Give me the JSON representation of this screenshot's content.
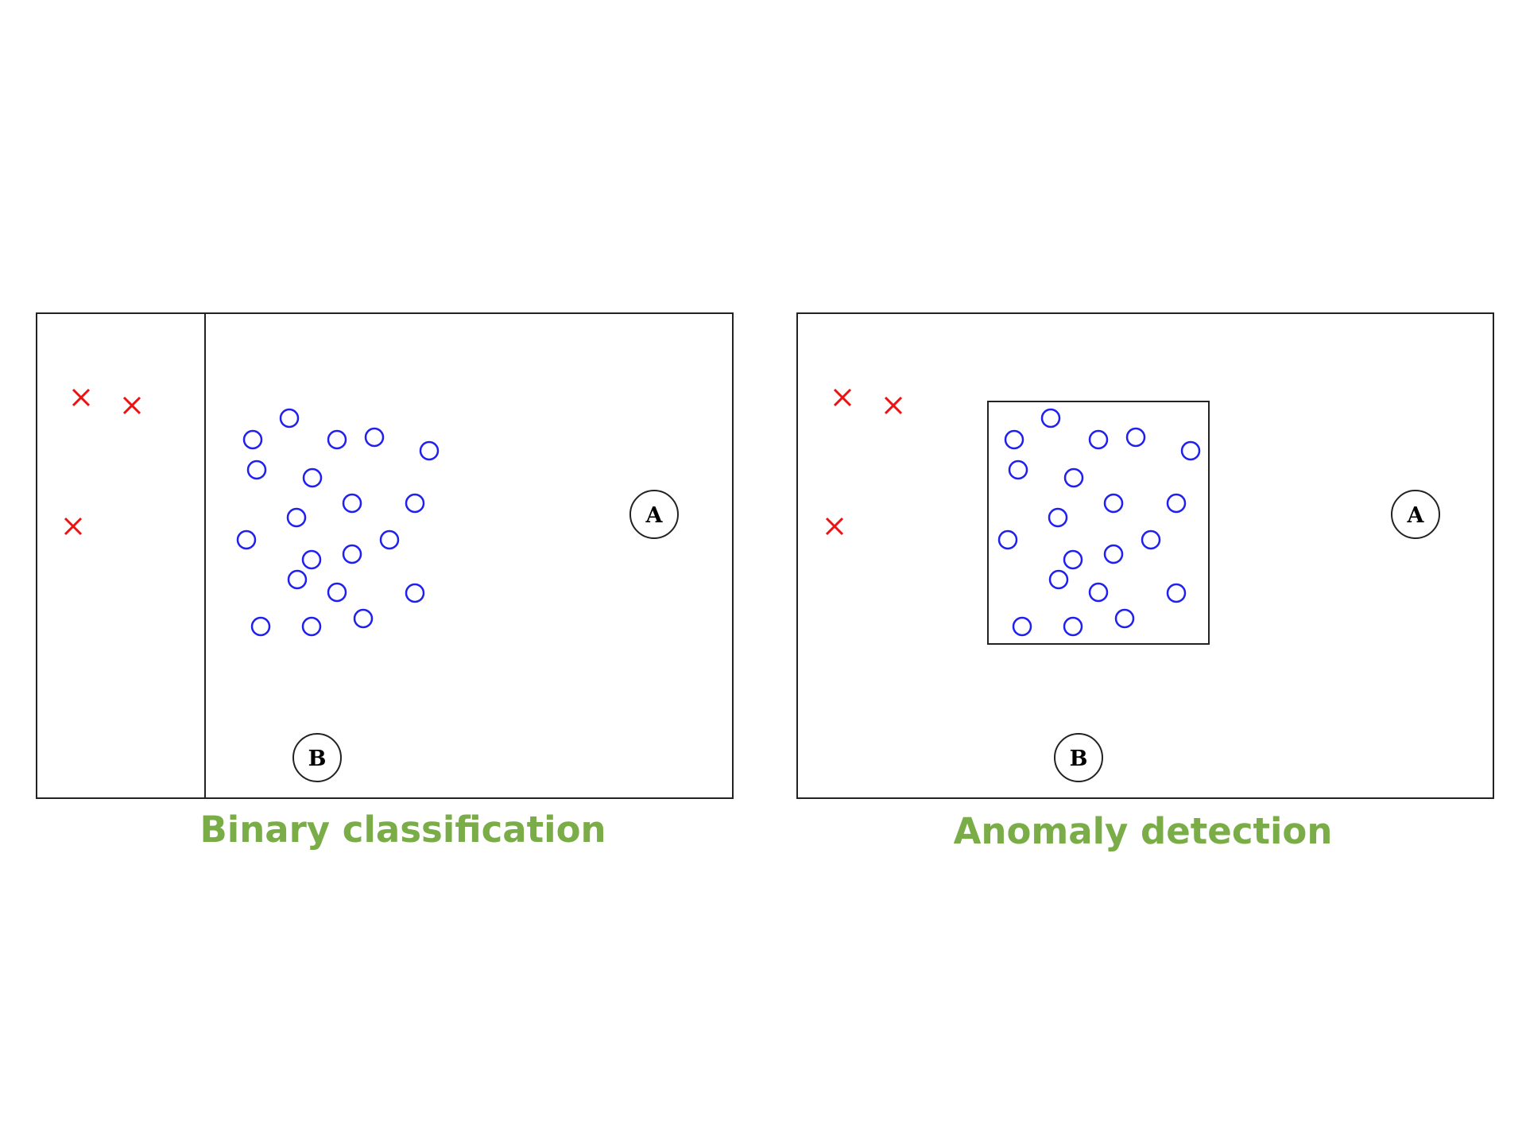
{
  "colors": {
    "anomaly": "#ee1111",
    "normal": "#1f1ff0",
    "frame": "#222222",
    "caption": "#7aac48"
  },
  "panels": [
    {
      "caption": "Binary classification",
      "label_a": "A",
      "label_b": "B"
    },
    {
      "caption": "Anomaly detection",
      "label_a": "A",
      "label_b": "B"
    }
  ]
}
